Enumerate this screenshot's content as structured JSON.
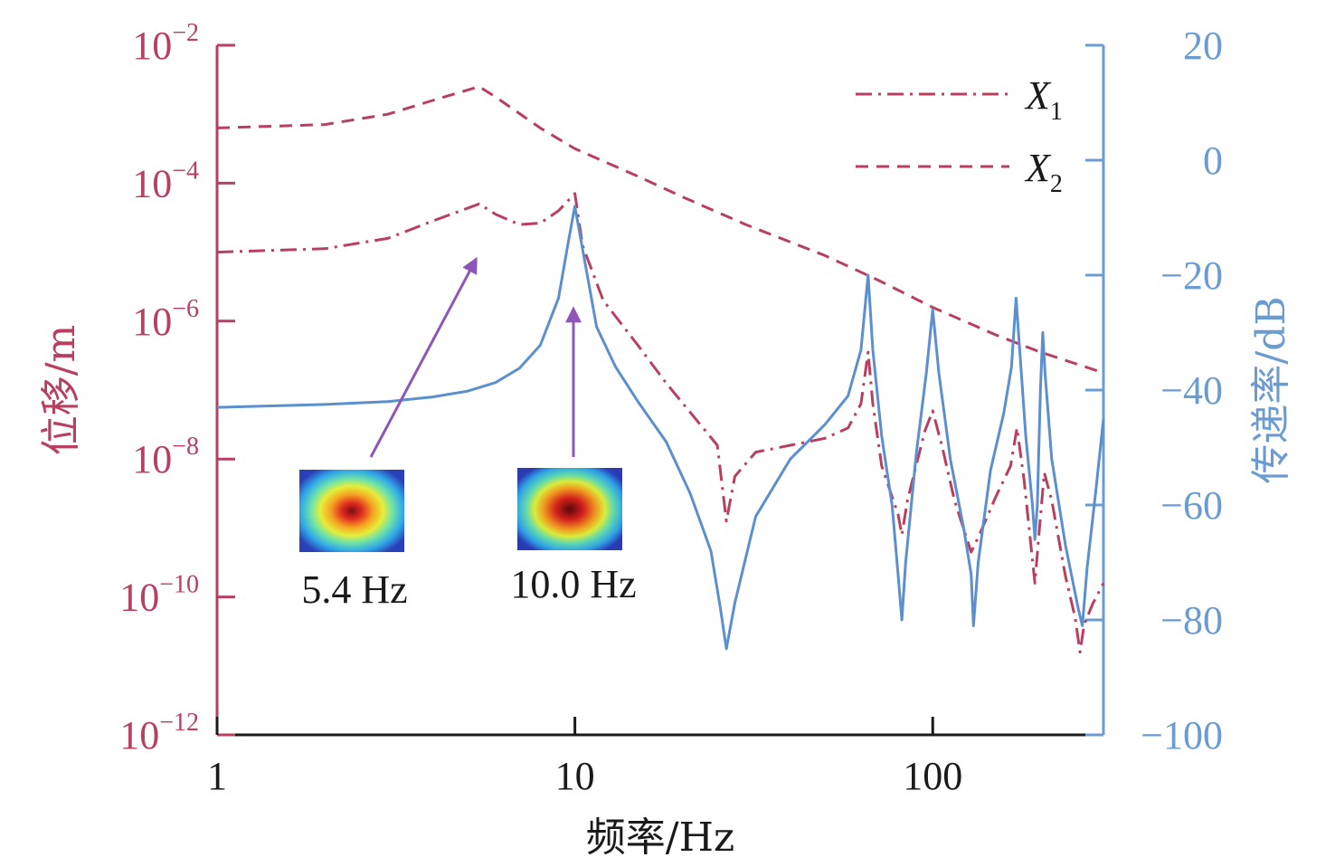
{
  "colors": {
    "left_axis": "#b8405e",
    "right_axis": "#6a9bd1",
    "x1": "#b8405e",
    "x2": "#b8405e",
    "transmissibility": "#5b8fce",
    "arrow": "#8e56b8",
    "black": "#1a1a1a"
  },
  "chart_data": {
    "type": "line",
    "xscale": "log",
    "xlim": [
      1,
      300
    ],
    "xticks": [
      {
        "value": 1,
        "label": "1"
      },
      {
        "value": 10,
        "label": "10"
      },
      {
        "value": 100,
        "label": "100"
      }
    ],
    "xlabel": "频率/Hz",
    "left_axis": {
      "label": "位移/m",
      "scale": "log",
      "ylim_exp": [
        -12,
        -2
      ],
      "ticks": [
        {
          "exp": -2,
          "base": "10",
          "sup": "−2"
        },
        {
          "exp": -4,
          "base": "10",
          "sup": "−4"
        },
        {
          "exp": -6,
          "base": "10",
          "sup": "−6"
        },
        {
          "exp": -8,
          "base": "10",
          "sup": "−8"
        },
        {
          "exp": -10,
          "base": "10",
          "sup": "−10"
        },
        {
          "exp": -12,
          "base": "10",
          "sup": "−12"
        }
      ]
    },
    "right_axis": {
      "label": "传递率/dB",
      "ylim": [
        -100,
        20
      ],
      "ticks": [
        {
          "value": 20,
          "label": "20"
        },
        {
          "value": 0,
          "label": "0"
        },
        {
          "value": -20,
          "label": "−20"
        },
        {
          "value": -40,
          "label": "−40"
        },
        {
          "value": -60,
          "label": "−60"
        },
        {
          "value": -80,
          "label": "−80"
        },
        {
          "value": -100,
          "label": "−100"
        }
      ]
    },
    "legend": {
      "position": "top-right",
      "entries": [
        {
          "key": "x1",
          "base": "X",
          "sub": "1",
          "style": "dash-dot"
        },
        {
          "key": "x2",
          "base": "X",
          "sub": "2",
          "style": "dashed"
        }
      ]
    },
    "series": [
      {
        "name": "X1",
        "axis": "left",
        "style": "dash-dot",
        "points": [
          [
            1,
            -5.0
          ],
          [
            2,
            -4.95
          ],
          [
            3,
            -4.8
          ],
          [
            4,
            -4.55
          ],
          [
            5.4,
            -4.3
          ],
          [
            6,
            -4.45
          ],
          [
            7,
            -4.6
          ],
          [
            8,
            -4.58
          ],
          [
            9,
            -4.4
          ],
          [
            10,
            -4.15
          ],
          [
            10.5,
            -4.9
          ],
          [
            12,
            -5.7
          ],
          [
            15,
            -6.35
          ],
          [
            18,
            -6.9
          ],
          [
            22,
            -7.45
          ],
          [
            25,
            -7.8
          ],
          [
            26.5,
            -8.9
          ],
          [
            28,
            -8.25
          ],
          [
            32,
            -7.9
          ],
          [
            40,
            -7.8
          ],
          [
            50,
            -7.7
          ],
          [
            58,
            -7.55
          ],
          [
            63,
            -7.2
          ],
          [
            66,
            -6.45
          ],
          [
            68,
            -7.2
          ],
          [
            72,
            -8.1
          ],
          [
            80,
            -8.8
          ],
          [
            82,
            -9.1
          ],
          [
            85,
            -8.6
          ],
          [
            95,
            -7.6
          ],
          [
            100,
            -7.3
          ],
          [
            106,
            -7.8
          ],
          [
            115,
            -8.6
          ],
          [
            128,
            -9.35
          ],
          [
            135,
            -9.1
          ],
          [
            150,
            -8.55
          ],
          [
            165,
            -8.1
          ],
          [
            172,
            -7.55
          ],
          [
            180,
            -8.3
          ],
          [
            193,
            -9.8
          ],
          [
            198,
            -9.1
          ],
          [
            205,
            -8.2
          ],
          [
            215,
            -8.6
          ],
          [
            235,
            -9.7
          ],
          [
            250,
            -10.3
          ],
          [
            258,
            -10.8
          ],
          [
            265,
            -10.4
          ],
          [
            280,
            -10.1
          ],
          [
            300,
            -9.8
          ]
        ]
      },
      {
        "name": "X2",
        "axis": "left",
        "style": "dashed",
        "points": [
          [
            1,
            -3.2
          ],
          [
            2,
            -3.15
          ],
          [
            3,
            -3.0
          ],
          [
            4,
            -2.8
          ],
          [
            5.4,
            -2.6
          ],
          [
            6,
            -2.75
          ],
          [
            8,
            -3.2
          ],
          [
            10,
            -3.5
          ],
          [
            15,
            -3.9
          ],
          [
            20,
            -4.2
          ],
          [
            30,
            -4.6
          ],
          [
            50,
            -5.05
          ],
          [
            70,
            -5.4
          ],
          [
            100,
            -5.8
          ],
          [
            150,
            -6.2
          ],
          [
            200,
            -6.45
          ],
          [
            300,
            -6.75
          ]
        ]
      },
      {
        "name": "传递率",
        "axis": "right",
        "style": "solid",
        "points": [
          [
            1,
            -43
          ],
          [
            2,
            -42.5
          ],
          [
            3,
            -42
          ],
          [
            4,
            -41.2
          ],
          [
            5,
            -40.2
          ],
          [
            6,
            -38.7
          ],
          [
            7,
            -36.2
          ],
          [
            8,
            -32.2
          ],
          [
            9,
            -24
          ],
          [
            9.6,
            -14
          ],
          [
            10,
            -8
          ],
          [
            10.4,
            -14
          ],
          [
            11.5,
            -29
          ],
          [
            13,
            -36
          ],
          [
            15,
            -42
          ],
          [
            18,
            -49
          ],
          [
            21,
            -58
          ],
          [
            24,
            -68
          ],
          [
            25.5,
            -78
          ],
          [
            26.5,
            -85
          ],
          [
            28,
            -77
          ],
          [
            32,
            -62
          ],
          [
            40,
            -52
          ],
          [
            50,
            -46
          ],
          [
            58,
            -41
          ],
          [
            63,
            -33
          ],
          [
            66,
            -20
          ],
          [
            68,
            -33
          ],
          [
            72,
            -48
          ],
          [
            77,
            -60
          ],
          [
            80,
            -72
          ],
          [
            82,
            -80
          ],
          [
            84,
            -70
          ],
          [
            90,
            -51
          ],
          [
            96,
            -37
          ],
          [
            100,
            -26
          ],
          [
            104,
            -37
          ],
          [
            112,
            -52
          ],
          [
            122,
            -64
          ],
          [
            128,
            -72
          ],
          [
            130,
            -81
          ],
          [
            134,
            -70
          ],
          [
            145,
            -54
          ],
          [
            158,
            -44
          ],
          [
            166,
            -36
          ],
          [
            171,
            -24
          ],
          [
            175,
            -33
          ],
          [
            182,
            -48
          ],
          [
            190,
            -60
          ],
          [
            193,
            -66
          ],
          [
            196,
            -60
          ],
          [
            200,
            -40
          ],
          [
            203,
            -30
          ],
          [
            206,
            -37
          ],
          [
            215,
            -52
          ],
          [
            235,
            -67
          ],
          [
            255,
            -78
          ],
          [
            262,
            -81
          ],
          [
            270,
            -71
          ],
          [
            285,
            -58
          ],
          [
            300,
            -45
          ]
        ]
      }
    ],
    "annotations": [
      {
        "text": "5.4 Hz",
        "frequency": 5.4,
        "target_axis": "left",
        "target_exp": -4.5
      },
      {
        "text": "10.0 Hz",
        "frequency": 10.0,
        "target_axis": "right",
        "target_db": -25
      }
    ]
  }
}
